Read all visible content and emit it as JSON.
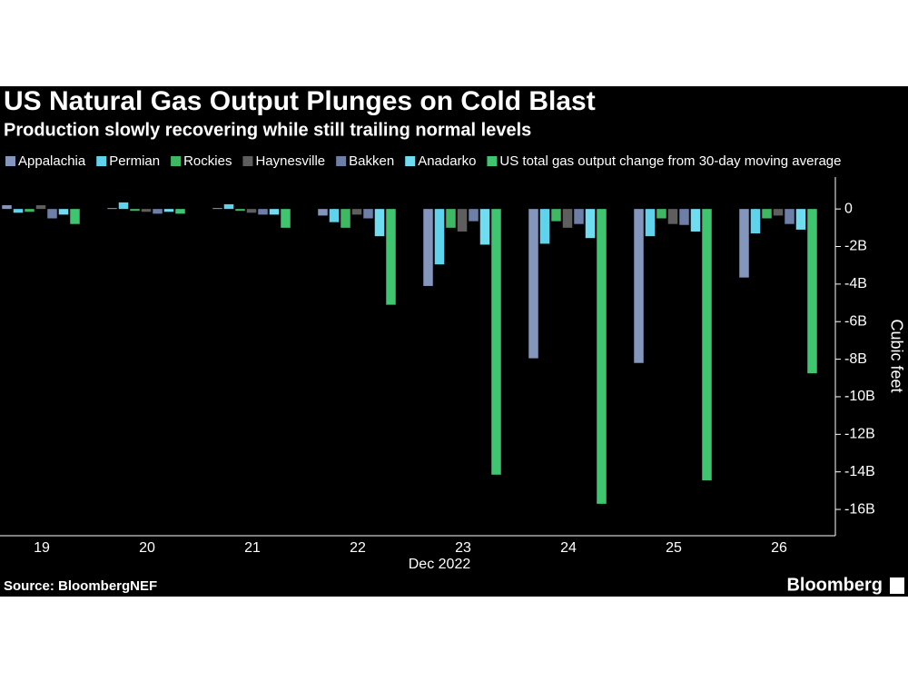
{
  "chart_data": {
    "type": "bar",
    "title": "US Natural Gas Output Plunges on Cold Blast",
    "subtitle": "Production slowly recovering while still trailing normal levels",
    "x_label": "Dec 2022",
    "y_label": "Cubic feet",
    "source": "Source: BloombergNEF",
    "brand": "Bloomberg",
    "categories": [
      "19",
      "20",
      "21",
      "22",
      "23",
      "24",
      "25",
      "26"
    ],
    "series": [
      {
        "name": "Appalachia",
        "color": "#8496bb",
        "values": [
          200000000,
          50000000,
          50000000,
          -350000000,
          -4100000000,
          -7950000000,
          -8200000000,
          -3650000000
        ]
      },
      {
        "name": "Permian",
        "color": "#5fd3ec",
        "values": [
          -200000000,
          350000000,
          250000000,
          -700000000,
          -2950000000,
          -1850000000,
          -1450000000,
          -1300000000
        ]
      },
      {
        "name": "Rockies",
        "color": "#3fb863",
        "values": [
          -150000000,
          -100000000,
          -100000000,
          -1000000000,
          -1000000000,
          -650000000,
          -500000000,
          -500000000
        ]
      },
      {
        "name": "Haynesville",
        "color": "#5e5e5e",
        "values": [
          200000000,
          -150000000,
          -200000000,
          -300000000,
          -1200000000,
          -1000000000,
          -800000000,
          -350000000
        ]
      },
      {
        "name": "Bakken",
        "color": "#6d7ea7",
        "values": [
          -500000000,
          -250000000,
          -300000000,
          -500000000,
          -650000000,
          -800000000,
          -850000000,
          -800000000
        ]
      },
      {
        "name": "Anadarko",
        "color": "#6fdcf0",
        "values": [
          -300000000,
          -150000000,
          -300000000,
          -1450000000,
          -1900000000,
          -1550000000,
          -1200000000,
          -1100000000
        ]
      },
      {
        "name": "US total gas output change from 30-day moving average",
        "color": "#3fc470",
        "values": [
          -800000000,
          -250000000,
          -1000000000,
          -5100000000,
          -14150000000,
          -15700000000,
          -14450000000,
          -8750000000
        ]
      }
    ],
    "ylim": [
      -17400000000,
      1700000000
    ],
    "yticks": [
      0,
      {
        "value": -2000000000,
        "label": "-2B"
      },
      {
        "value": -4000000000,
        "label": "-4B"
      },
      {
        "value": -6000000000,
        "label": "-6B"
      },
      {
        "value": -8000000000,
        "label": "-8B"
      },
      {
        "value": -10000000000,
        "label": "-10B"
      },
      {
        "value": -12000000000,
        "label": "-12B"
      },
      {
        "value": -14000000000,
        "label": "-14B"
      },
      {
        "value": -16000000000,
        "label": "-16B"
      }
    ],
    "grid": false
  }
}
